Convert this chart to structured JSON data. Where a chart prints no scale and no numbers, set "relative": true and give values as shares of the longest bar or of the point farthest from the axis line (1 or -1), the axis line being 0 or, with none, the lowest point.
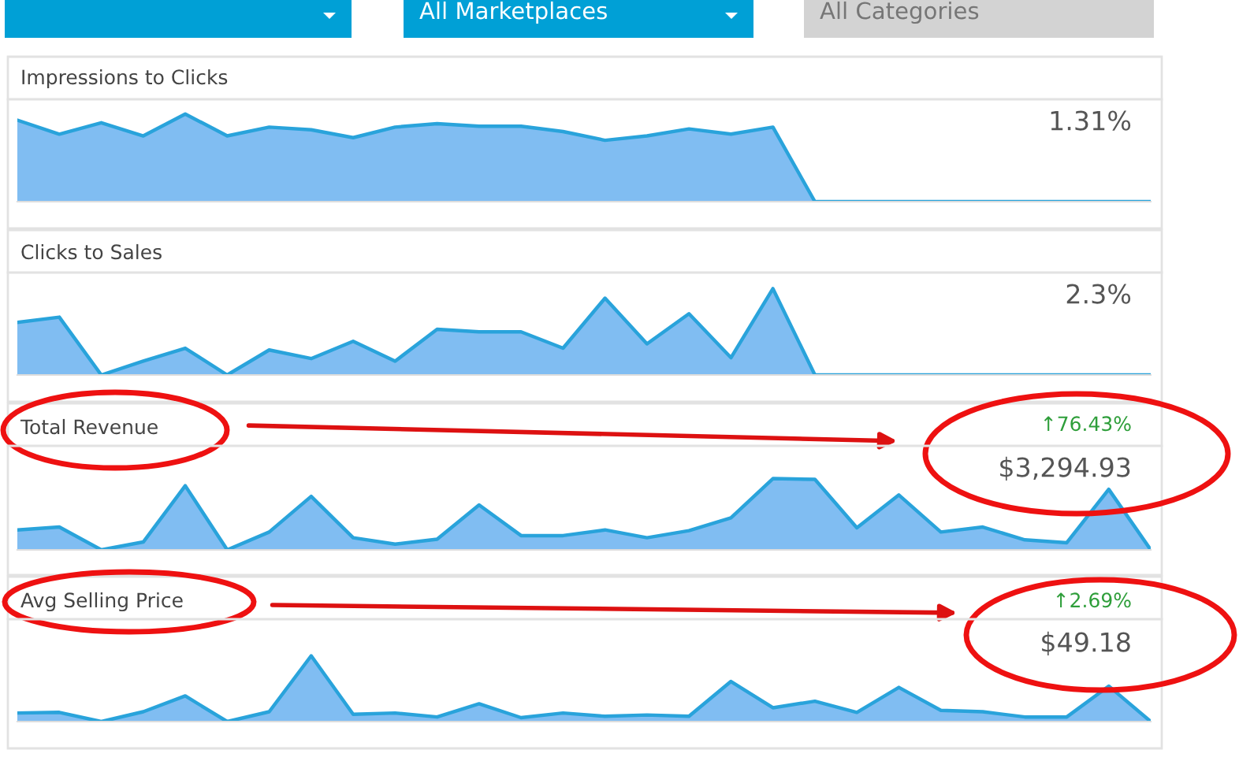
{
  "chart_data": [
    {
      "type": "other",
      "annotations": [
        "All Marketplaces",
        "All Categories"
      ]
    },
    {
      "type": "area",
      "title": "Impressions to Clicks",
      "relative": true,
      "annotations": [
        "1.31%"
      ],
      "categories": [
        null,
        null,
        null,
        null,
        null,
        null,
        null,
        null,
        null,
        null,
        null,
        null,
        null,
        null,
        null,
        null,
        null,
        null,
        null,
        null,
        null,
        null,
        null,
        null,
        null,
        null,
        null,
        null
      ],
      "series": [
        {
          "color": "#29a3db",
          "values": [
            0.93,
            0.77,
            0.9,
            0.75,
            1,
            0.75,
            0.85,
            0.82,
            0.73,
            0.85,
            0.89,
            0.86,
            0.86,
            0.8,
            0.7,
            0.75,
            0.83,
            0.77,
            0.85,
            0,
            0,
            0,
            0,
            0,
            0,
            0,
            0,
            0
          ]
        }
      ]
    },
    {
      "type": "area",
      "title": "Clicks to Sales",
      "relative": true,
      "annotations": [
        "2.3%"
      ],
      "categories": [
        null,
        null,
        null,
        null,
        null,
        null,
        null,
        null,
        null,
        null,
        null,
        null,
        null,
        null,
        null,
        null,
        null,
        null,
        null,
        null,
        null,
        null,
        null,
        null,
        null,
        null,
        null,
        null
      ],
      "series": [
        {
          "color": "#29a3db",
          "values": [
            0.61,
            0.67,
            0,
            0.16,
            0.31,
            0,
            0.29,
            0.19,
            0.39,
            0.16,
            0.53,
            0.5,
            0.5,
            0.31,
            0.89,
            0.36,
            0.71,
            0.2,
            1,
            0,
            0,
            0,
            0,
            0,
            0,
            0,
            0,
            0
          ]
        }
      ]
    },
    {
      "type": "area",
      "title": "Total Revenue",
      "relative": true,
      "annotations": [
        "↑76.43%",
        "$3,294.93"
      ],
      "categories": [
        null,
        null,
        null,
        null,
        null,
        null,
        null,
        null,
        null,
        null,
        null,
        null,
        null,
        null,
        null,
        null,
        null,
        null,
        null,
        null,
        null,
        null,
        null,
        null,
        null,
        null,
        null,
        null
      ],
      "series": [
        {
          "color": "#29a3db",
          "values": [
            0.28,
            0.32,
            0,
            0.11,
            0.9,
            0,
            0.25,
            0.75,
            0.17,
            0.08,
            0.15,
            0.63,
            0.2,
            0.2,
            0.28,
            0.17,
            0.27,
            0.45,
            1,
            0.99,
            0.31,
            0.77,
            0.25,
            0.32,
            0.14,
            0.1,
            0.85,
            0
          ]
        }
      ]
    },
    {
      "type": "area",
      "title": "Avg Selling Price",
      "relative": true,
      "annotations": [
        "↑2.69%",
        "$49.18"
      ],
      "categories": [
        null,
        null,
        null,
        null,
        null,
        null,
        null,
        null,
        null,
        null,
        null,
        null,
        null,
        null,
        null,
        null,
        null,
        null,
        null,
        null,
        null,
        null,
        null,
        null,
        null,
        null,
        null,
        null
      ],
      "series": [
        {
          "color": "#29a3db",
          "values": [
            0.13,
            0.14,
            0,
            0.15,
            0.39,
            0,
            0.15,
            1,
            0.11,
            0.13,
            0.07,
            0.27,
            0.06,
            0.13,
            0.08,
            0.1,
            0.08,
            0.61,
            0.21,
            0.31,
            0.14,
            0.52,
            0.17,
            0.15,
            0.07,
            0.07,
            0.54,
            0
          ]
        }
      ]
    }
  ]
}
